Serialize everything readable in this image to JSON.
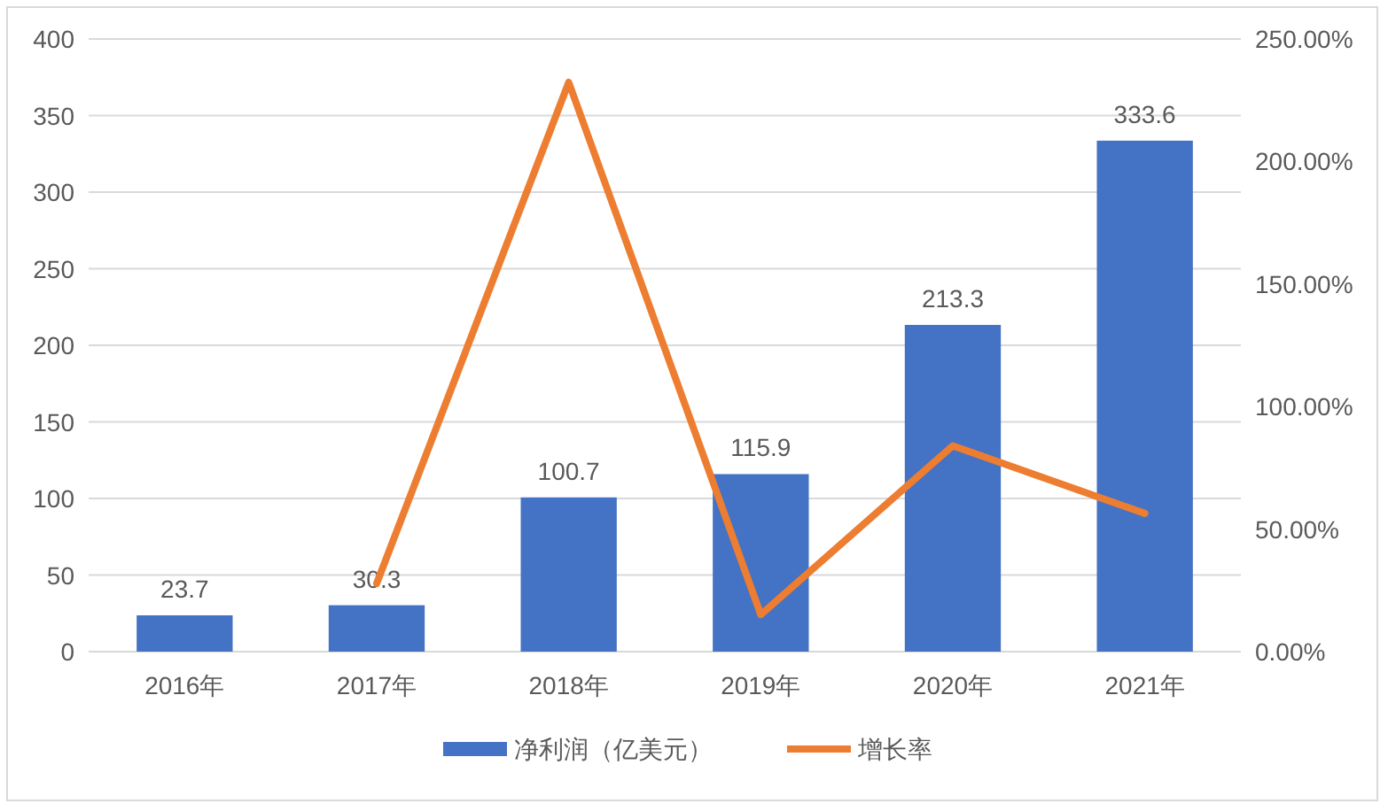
{
  "chart_data": {
    "type": "bar",
    "categories": [
      "2016年",
      "2017年",
      "2018年",
      "2019年",
      "2020年",
      "2021年"
    ],
    "series": [
      {
        "name": "净利润（亿美元）",
        "color": "#4472c4",
        "values": [
          23.7,
          30.3,
          100.7,
          115.9,
          213.3,
          333.6
        ],
        "value_labels": [
          "23.7",
          "30.3",
          "100.7",
          "115.9",
          "213.3",
          "333.6"
        ]
      },
      {
        "name": "增长率",
        "color": "#ed7d31",
        "type": "line",
        "axis": "y2",
        "values": [
          null,
          27.8,
          232.3,
          15.1,
          84.0,
          56.4
        ]
      }
    ],
    "ylim": [
      0,
      400
    ],
    "yticks": [
      0,
      50,
      100,
      150,
      200,
      250,
      300,
      350,
      400
    ],
    "y2lim": [
      0,
      250
    ],
    "y2ticks": [
      {
        "value": 0,
        "label": "0.00%"
      },
      {
        "value": 50,
        "label": "50.00%"
      },
      {
        "value": 100,
        "label": "100.00%"
      },
      {
        "value": 150,
        "label": "150.00%"
      },
      {
        "value": 200,
        "label": "200.00%"
      },
      {
        "value": 250,
        "label": "250.00%"
      }
    ],
    "grid": "y",
    "legend": "bottom"
  }
}
